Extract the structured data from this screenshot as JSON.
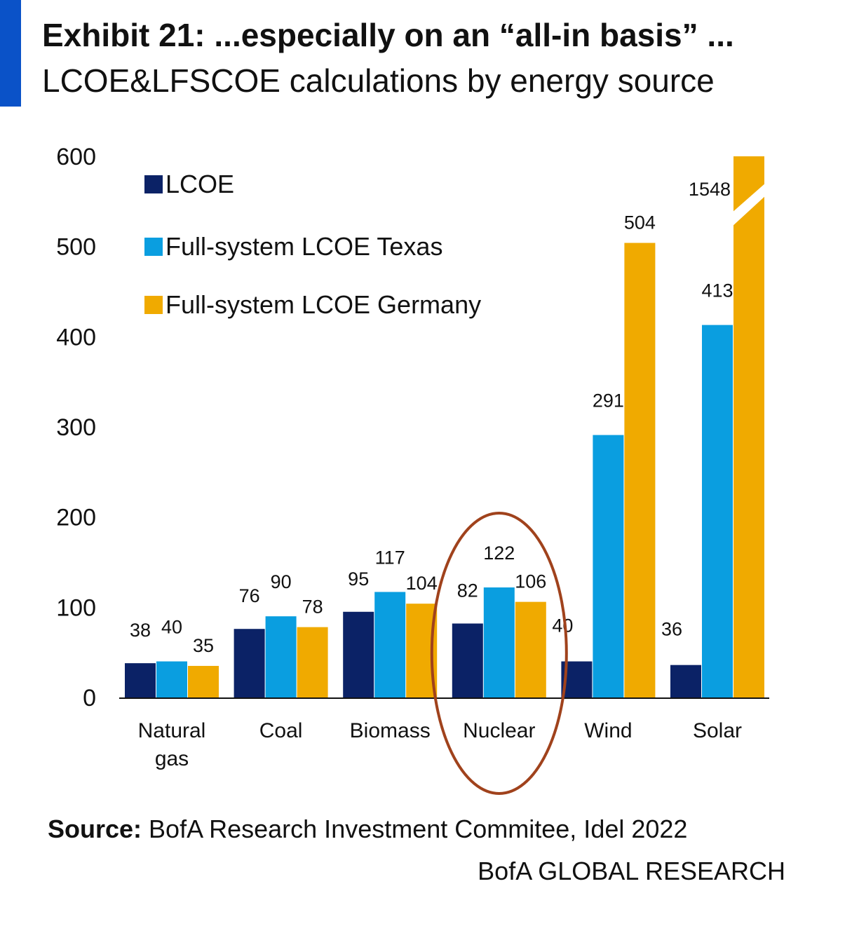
{
  "header": {
    "title": "Exhibit 21: ...especially on an “all-in basis” ...",
    "subtitle": "LCOE&LFSCOE calculations by energy source"
  },
  "chart_data": {
    "type": "bar",
    "categories": [
      "Natural gas",
      "Coal",
      "Biomass",
      "Nuclear",
      "Wind",
      "Solar"
    ],
    "series": [
      {
        "name": "LCOE",
        "color": "#0b2266",
        "values": [
          38,
          76,
          95,
          82,
          40,
          36
        ]
      },
      {
        "name": "Full-system LCOE Texas",
        "color": "#0a9ee0",
        "values": [
          40,
          90,
          117,
          122,
          291,
          413
        ]
      },
      {
        "name": "Full-system LCOE Germany",
        "color": "#f0aa00",
        "values": [
          35,
          78,
          104,
          106,
          504,
          1548
        ]
      }
    ],
    "ylim": [
      0,
      600
    ],
    "yticks": [
      0,
      100,
      200,
      300,
      400,
      500,
      600
    ],
    "axis_break": {
      "series": "Full-system LCOE Germany",
      "category": "Solar"
    },
    "highlight": {
      "category": "Nuclear",
      "shape": "ellipse",
      "color": "#a0421c"
    },
    "legend_position": "top-left",
    "grid": false
  },
  "footer": {
    "source_label": "Source:",
    "source_text": " BofA Research Investment Commitee, Idel 2022",
    "brand": "BofA GLOBAL RESEARCH"
  }
}
